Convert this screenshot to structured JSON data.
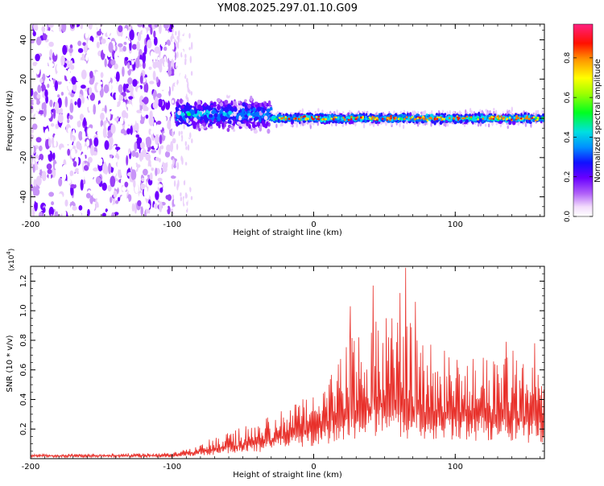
{
  "chart_data": [
    {
      "type": "heatmap",
      "title": "YM08.2025.297.01.10.G09",
      "xlabel": "Height of straight line (km)",
      "ylabel": "Frequency (Hz)",
      "xlim": [
        -200,
        163
      ],
      "ylim": [
        -50,
        48
      ],
      "x_ticks": [
        -200,
        -100,
        0,
        100
      ],
      "x_tick_labels": [
        "-200",
        "-100",
        "0",
        "100"
      ],
      "y_ticks": [
        -40,
        -20,
        0,
        20,
        40
      ],
      "y_tick_labels": [
        "-40",
        "-20",
        "0",
        "20",
        "40"
      ],
      "colorbar": {
        "label": "Normalized spectral amplitude",
        "range": [
          0,
          0.97
        ],
        "ticks": [
          0,
          0.2,
          0.4,
          0.6,
          0.8
        ],
        "tick_labels": [
          "0.0",
          "0.2",
          "0.4",
          "0.6",
          "0.8"
        ],
        "colors": [
          "#ffffff",
          "#e8c8f8",
          "#8800ff",
          "#2000ff",
          "#00d8ff",
          "#00ff40",
          "#ffff00",
          "#ff8000",
          "#ff0000",
          "#ff2080"
        ]
      },
      "regions": [
        {
          "x_range": [
            -200,
            -97
          ],
          "description_amplitude": 0.25,
          "freq_spread": 50
        },
        {
          "x_range": [
            -97,
            -30
          ],
          "description_amplitude": 0.35,
          "freq_spread": 6
        },
        {
          "x_range": [
            -30,
            163
          ],
          "description_amplitude": 0.7,
          "freq_spread": 3
        }
      ]
    },
    {
      "type": "line",
      "xlabel": "Height of straight line (km)",
      "ylabel": "SNR (10 * v/v)",
      "y_multiplier": "(x10",
      "y_multiplier_exp": "4",
      "y_multiplier_close": ")",
      "xlim": [
        -200,
        163
      ],
      "ylim": [
        0,
        1.3
      ],
      "x_ticks": [
        -200,
        -100,
        0,
        100
      ],
      "x_tick_labels": [
        "-200",
        "-100",
        "0",
        "100"
      ],
      "y_ticks": [
        0.2,
        0.4,
        0.6,
        0.8,
        1.0,
        1.2
      ],
      "y_tick_labels": [
        "0.2",
        "0.4",
        "0.6",
        "0.8",
        "1.0",
        "1.2"
      ],
      "color": "#e8302a",
      "envelope": [
        {
          "x": -200,
          "base": 0.02,
          "peak": 0.03
        },
        {
          "x": -100,
          "base": 0.02,
          "peak": 0.04
        },
        {
          "x": -80,
          "base": 0.05,
          "peak": 0.1
        },
        {
          "x": -60,
          "base": 0.08,
          "peak": 0.2
        },
        {
          "x": -40,
          "base": 0.1,
          "peak": 0.25
        },
        {
          "x": -20,
          "base": 0.15,
          "peak": 0.35
        },
        {
          "x": 0,
          "base": 0.2,
          "peak": 0.45
        },
        {
          "x": 20,
          "base": 0.3,
          "peak": 0.75
        },
        {
          "x": 40,
          "base": 0.35,
          "peak": 0.95
        },
        {
          "x": 60,
          "base": 0.35,
          "peak": 1.0
        },
        {
          "x": 80,
          "base": 0.3,
          "peak": 0.8
        },
        {
          "x": 100,
          "base": 0.3,
          "peak": 0.7
        },
        {
          "x": 120,
          "base": 0.3,
          "peak": 0.7
        },
        {
          "x": 140,
          "base": 0.28,
          "peak": 0.75
        },
        {
          "x": 163,
          "base": 0.25,
          "peak": 0.6
        }
      ],
      "peaks": [
        {
          "x": 26,
          "y": 1.03
        },
        {
          "x": 42,
          "y": 1.17
        },
        {
          "x": 61,
          "y": 1.12
        },
        {
          "x": 65,
          "y": 1.29
        },
        {
          "x": 72,
          "y": 1.06
        },
        {
          "x": 136,
          "y": 0.79
        },
        {
          "x": 156,
          "y": 0.78
        }
      ]
    }
  ]
}
